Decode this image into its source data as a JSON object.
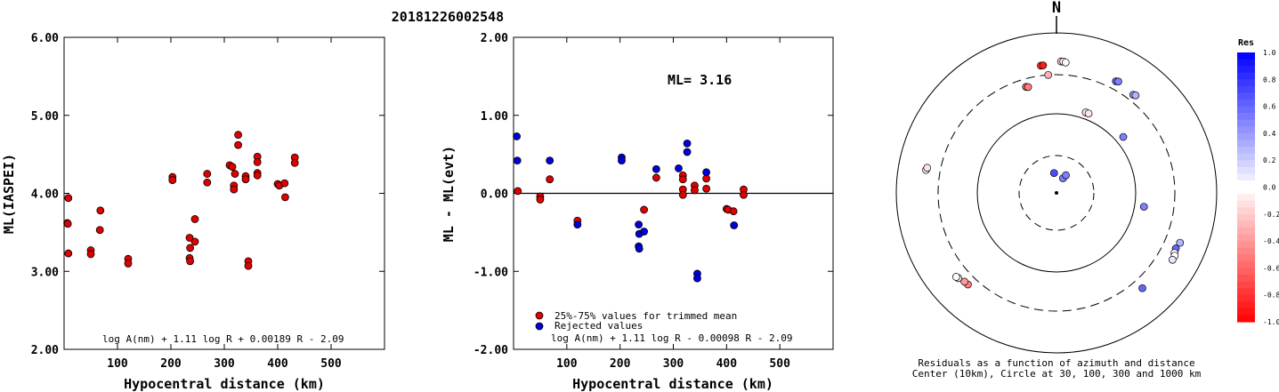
{
  "title": "20181226002548",
  "chart_data": [
    {
      "type": "scatter",
      "ylabel": "ML(IASPEI)",
      "xlabel": "Hypocentral distance (km)",
      "xlim": [
        0,
        600
      ],
      "ylim": [
        2.0,
        6.0
      ],
      "x_ticks": [
        100,
        200,
        300,
        400,
        500
      ],
      "x_tick_labels": [
        "100",
        "200",
        "300",
        "400",
        "500"
      ],
      "y_ticks": [
        2.0,
        3.0,
        4.0,
        5.0,
        6.0
      ],
      "y_tick_labels": [
        "2.00",
        "3.00",
        "4.00",
        "5.00",
        "6.00"
      ],
      "formula": "log A(nm) + 1.11 log R + 0.00189 R - 2.09",
      "marker_color": "#e00000",
      "points": [
        [
          8,
          3.94
        ],
        [
          6,
          3.62
        ],
        [
          7,
          3.61
        ],
        [
          8,
          3.23
        ],
        [
          50,
          3.27
        ],
        [
          50,
          3.22
        ],
        [
          68,
          3.78
        ],
        [
          67,
          3.53
        ],
        [
          120,
          3.16
        ],
        [
          120,
          3.1
        ],
        [
          203,
          4.21
        ],
        [
          203,
          4.17
        ],
        [
          235,
          3.43
        ],
        [
          236,
          3.3
        ],
        [
          235,
          3.17
        ],
        [
          236,
          3.13
        ],
        [
          245,
          3.67
        ],
        [
          245,
          3.38
        ],
        [
          268,
          4.25
        ],
        [
          268,
          4.14
        ],
        [
          310,
          4.36
        ],
        [
          315,
          4.34
        ],
        [
          320,
          4.25
        ],
        [
          318,
          4.1
        ],
        [
          318,
          4.05
        ],
        [
          326,
          4.75
        ],
        [
          326,
          4.62
        ],
        [
          340,
          4.22
        ],
        [
          340,
          4.18
        ],
        [
          345,
          3.13
        ],
        [
          345,
          3.07
        ],
        [
          362,
          4.47
        ],
        [
          362,
          4.4
        ],
        [
          362,
          4.26
        ],
        [
          362,
          4.23
        ],
        [
          400,
          4.12
        ],
        [
          403,
          4.1
        ],
        [
          413,
          4.13
        ],
        [
          414,
          3.95
        ],
        [
          432,
          4.46
        ],
        [
          432,
          4.39
        ]
      ]
    },
    {
      "type": "scatter",
      "ylabel": "ML - ML(evt)",
      "xlabel": "Hypocentral distance (km)",
      "xlim": [
        0,
        600
      ],
      "ylim": [
        -2.0,
        2.0
      ],
      "x_ticks": [
        100,
        200,
        300,
        400,
        500
      ],
      "x_tick_labels": [
        "100",
        "200",
        "300",
        "400",
        "500"
      ],
      "y_ticks": [
        -2.0,
        -1.0,
        0.0,
        1.0,
        2.0
      ],
      "y_tick_labels": [
        "-2.00",
        "-1.00",
        "0.00",
        "1.00",
        "2.00"
      ],
      "ml_label": "ML= 3.16",
      "formula": "log A(nm) + 1.11 log R - 0.00098 R - 2.09",
      "legend": [
        {
          "label": "25%-75% values for trimmed mean",
          "color": "#e00000"
        },
        {
          "label": "Rejected values",
          "color": "#0000dd"
        }
      ],
      "series": [
        {
          "name": "25%-75% values for trimmed mean",
          "color": "#e00000",
          "points": [
            [
              8,
              0.03
            ],
            [
              50,
              -0.04
            ],
            [
              50,
              -0.08
            ],
            [
              68,
              0.18
            ],
            [
              120,
              -0.35
            ],
            [
              245,
              -0.21
            ],
            [
              268,
              0.2
            ],
            [
              318,
              0.23
            ],
            [
              318,
              0.18
            ],
            [
              318,
              0.05
            ],
            [
              318,
              -0.02
            ],
            [
              340,
              0.1
            ],
            [
              340,
              0.04
            ],
            [
              362,
              0.19
            ],
            [
              362,
              0.06
            ],
            [
              400,
              -0.2
            ],
            [
              403,
              -0.21
            ],
            [
              413,
              -0.23
            ],
            [
              432,
              0.05
            ],
            [
              432,
              -0.02
            ]
          ]
        },
        {
          "name": "Rejected values",
          "color": "#0000dd",
          "points": [
            [
              6,
              0.73
            ],
            [
              7,
              0.42
            ],
            [
              68,
              0.42
            ],
            [
              120,
              -0.4
            ],
            [
              203,
              0.46
            ],
            [
              203,
              0.42
            ],
            [
              235,
              -0.4
            ],
            [
              236,
              -0.52
            ],
            [
              235,
              -0.68
            ],
            [
              236,
              -0.71
            ],
            [
              245,
              -0.49
            ],
            [
              268,
              0.31
            ],
            [
              310,
              0.32
            ],
            [
              326,
              0.64
            ],
            [
              326,
              0.53
            ],
            [
              345,
              -1.03
            ],
            [
              345,
              -1.09
            ],
            [
              362,
              0.27
            ],
            [
              414,
              -0.41
            ]
          ]
        }
      ]
    },
    {
      "type": "scatter",
      "subtype": "polar residual map",
      "north_label": "N",
      "caption_line1": "Residuals as a function of azimuth and distance",
      "caption_line2": "Center (10km), Circle at 30, 100, 300 and 1000 km",
      "rings_km": [
        30,
        100,
        300,
        1000
      ],
      "colorbar_title": "Res",
      "colorbar_range": [
        -1.0,
        1.0
      ],
      "colorbar_ticks": [
        "1.0",
        "0.8",
        "0.6",
        "0.4",
        "0.2",
        "0.0",
        "-0.2",
        "-0.4",
        "-0.6",
        "-0.8",
        "-1.0"
      ],
      "stations": [
        {
          "azimuth": 353,
          "distance_km": 400,
          "res": -0.8
        },
        {
          "azimuth": 354,
          "distance_km": 400,
          "res": -0.9
        },
        {
          "azimuth": 356,
          "distance_km": 300,
          "res": -0.3
        },
        {
          "azimuth": 2,
          "distance_km": 440,
          "res": -0.2
        },
        {
          "azimuth": 3,
          "distance_km": 440,
          "res": 0.0
        },
        {
          "azimuth": 4,
          "distance_km": 430,
          "res": 0.0
        },
        {
          "azimuth": 344,
          "distance_km": 240,
          "res": -0.6
        },
        {
          "azimuth": 345,
          "distance_km": 235,
          "res": -0.5
        },
        {
          "azimuth": 28,
          "distance_km": 380,
          "res": 0.6
        },
        {
          "azimuth": 29,
          "distance_km": 390,
          "res": 0.5
        },
        {
          "azimuth": 38,
          "distance_km": 360,
          "res": 0.4
        },
        {
          "azimuth": 39,
          "distance_km": 370,
          "res": 0.3
        },
        {
          "azimuth": 20,
          "distance_km": 120,
          "res": -0.1
        },
        {
          "azimuth": 22,
          "distance_km": 120,
          "res": -0.1
        },
        {
          "azimuth": 50,
          "distance_km": 125,
          "res": 0.5
        },
        {
          "azimuth": 353,
          "distance_km": 18,
          "res": 0.7
        },
        {
          "azimuth": 24,
          "distance_km": 16,
          "res": 0.5
        },
        {
          "azimuth": 28,
          "distance_km": 18,
          "res": 0.5
        },
        {
          "azimuth": 280,
          "distance_km": 450,
          "res": 0.0
        },
        {
          "azimuth": 281,
          "distance_km": 440,
          "res": -0.1
        },
        {
          "azimuth": 99,
          "distance_km": 130,
          "res": 0.5
        },
        {
          "azimuth": 112,
          "distance_km": 460,
          "res": 0.3
        },
        {
          "azimuth": 115,
          "distance_km": 440,
          "res": 0.6
        },
        {
          "azimuth": 117,
          "distance_km": 450,
          "res": 0.0
        },
        {
          "azimuth": 118,
          "distance_km": 470,
          "res": 0.0
        },
        {
          "azimuth": 120,
          "distance_km": 470,
          "res": 0.1
        },
        {
          "azimuth": 138,
          "distance_km": 400,
          "res": 0.6
        },
        {
          "azimuth": 224,
          "distance_km": 390,
          "res": -0.5
        },
        {
          "azimuth": 226,
          "distance_km": 395,
          "res": -0.4
        },
        {
          "azimuth": 229,
          "distance_km": 420,
          "res": -0.1
        },
        {
          "azimuth": 230,
          "distance_km": 430,
          "res": 0.0
        }
      ]
    }
  ]
}
